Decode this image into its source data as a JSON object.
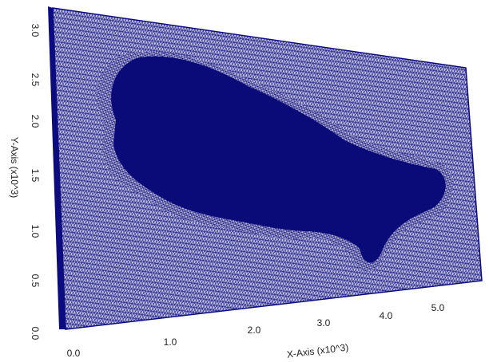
{
  "axes": {
    "x": {
      "label": "X-Axis (x10^3)",
      "ticks": [
        "0.0",
        "1.0",
        "2.0",
        "3.0",
        "4.0",
        "5.0"
      ]
    },
    "y": {
      "label": "Y-Axis (x10^3)",
      "ticks": [
        "0.0",
        "0.5",
        "1.0",
        "1.5",
        "2.0",
        "2.5",
        "3.0"
      ]
    }
  }
}
